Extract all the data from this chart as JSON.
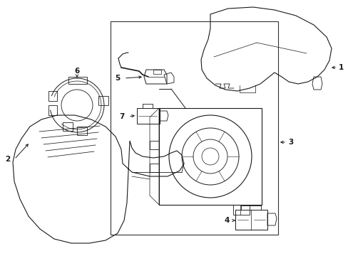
{
  "background_color": "#ffffff",
  "line_color": "#1a1a1a",
  "label_color": "#000000",
  "figure_width": 4.89,
  "figure_height": 3.6,
  "dpi": 100,
  "arrow_color": "#1a1a1a"
}
